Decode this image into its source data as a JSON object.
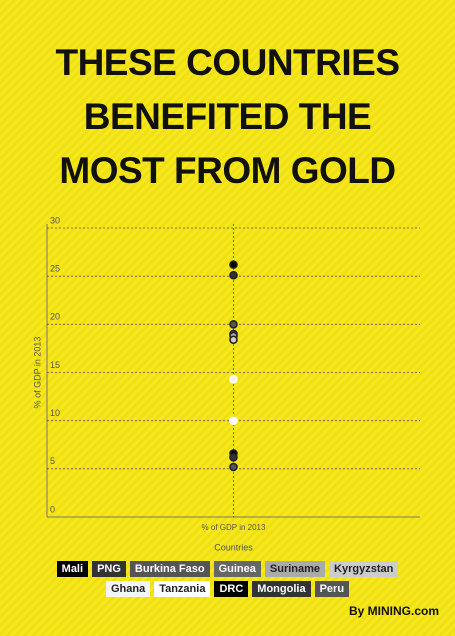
{
  "chart_data": {
    "type": "dot",
    "title": "THESE COUNTRIES BENEFITED THE MOST FROM GOLD",
    "categories": [
      "% of GDP in 2013"
    ],
    "x_label": "Countries",
    "y_label": "% of GDP in 2013",
    "ylim": [
      0,
      30
    ],
    "yticks": [
      0,
      5,
      10,
      15,
      20,
      25,
      30
    ],
    "grid": true,
    "series": [
      {
        "name": "Mali",
        "color": "#000000",
        "values": [
          26.2
        ]
      },
      {
        "name": "PNG",
        "color": "#333333",
        "values": [
          25.1
        ]
      },
      {
        "name": "Burkina Faso",
        "color": "#555555",
        "values": [
          20.0
        ]
      },
      {
        "name": "Guinea",
        "color": "#666666",
        "values": [
          19.0
        ]
      },
      {
        "name": "Suriname",
        "color": "#aaaaaa",
        "values": [
          18.8
        ]
      },
      {
        "name": "Kyrgyzstan",
        "color": "#cccccc",
        "values": [
          18.4
        ]
      },
      {
        "name": "Ghana",
        "color": "#f4f4f4",
        "values": [
          14.3
        ]
      },
      {
        "name": "Tanzania",
        "color": "#ffffff",
        "values": [
          10.0
        ]
      },
      {
        "name": "DRC",
        "color": "#000000",
        "values": [
          6.6
        ]
      },
      {
        "name": "Mongolia",
        "color": "#333333",
        "values": [
          6.2
        ]
      },
      {
        "name": "Peru",
        "color": "#555555",
        "values": [
          5.2
        ]
      }
    ],
    "source": "By MINING.com"
  }
}
